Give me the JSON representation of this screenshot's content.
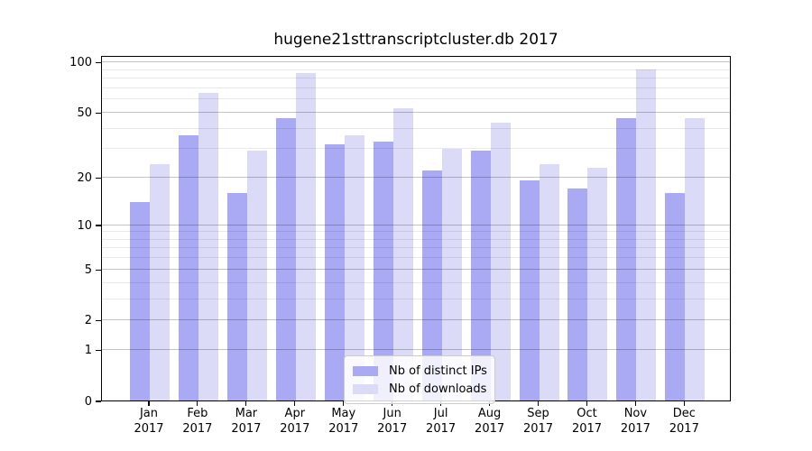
{
  "title": "hugene21sttranscriptcluster.db 2017",
  "chart_data": {
    "type": "bar",
    "title": "hugene21sttranscriptcluster.db 2017",
    "scale": "log1p",
    "categories": [
      "Jan",
      "Feb",
      "Mar",
      "Apr",
      "May",
      "Jun",
      "Jul",
      "Aug",
      "Sep",
      "Oct",
      "Nov",
      "Dec"
    ],
    "year_label": "2017",
    "series": [
      {
        "name": "Nb of distinct IPs",
        "color": "#a9a9f4",
        "values": [
          14,
          36,
          16,
          46,
          32,
          33,
          22,
          29,
          19,
          17,
          46,
          16
        ]
      },
      {
        "name": "Nb of downloads",
        "color": "#dbdbf8",
        "values": [
          24,
          65,
          29,
          86,
          36,
          53,
          30,
          43,
          24,
          23,
          90,
          46
        ]
      }
    ],
    "xlabel": "",
    "ylabel": "",
    "ylim": [
      0,
      110
    ],
    "yticks": [
      100,
      50,
      20,
      10,
      5,
      2,
      1,
      0
    ],
    "grid_minor_values": [
      3,
      4,
      6,
      7,
      8,
      9,
      30,
      40,
      60,
      70,
      80,
      90
    ],
    "grid_major_values": [
      1,
      2,
      5,
      10,
      20,
      50,
      100
    ],
    "grid": "on",
    "legend_position": "bottom-center"
  }
}
